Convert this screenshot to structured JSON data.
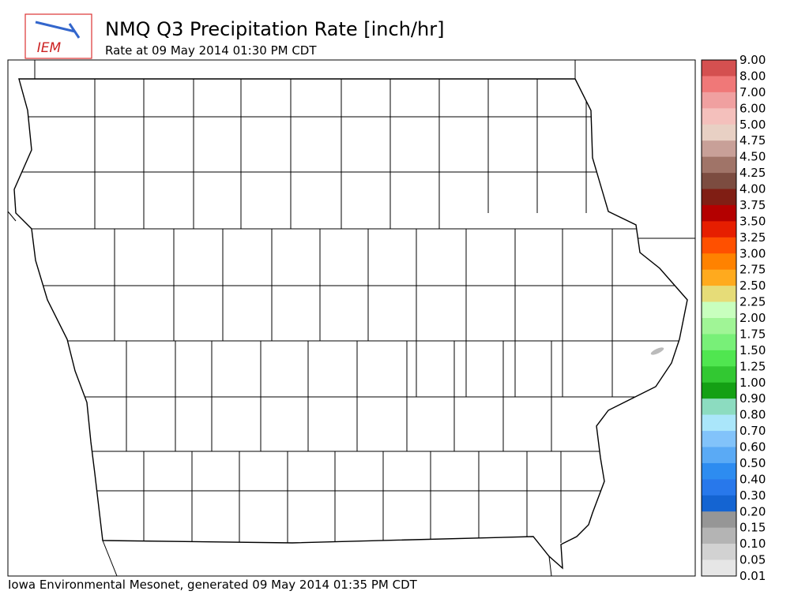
{
  "header": {
    "title": "NMQ Q3 Precipitation Rate [inch/hr]",
    "subtitle": "Rate at 09 May 2014 01:30 PM CDT",
    "logo": "IEM"
  },
  "legend": {
    "labels": [
      "9.00",
      "8.00",
      "7.00",
      "6.00",
      "5.00",
      "4.75",
      "4.50",
      "4.25",
      "4.00",
      "3.75",
      "3.50",
      "3.25",
      "3.00",
      "2.75",
      "2.50",
      "2.25",
      "2.00",
      "1.75",
      "1.50",
      "1.25",
      "1.00",
      "0.90",
      "0.80",
      "0.70",
      "0.60",
      "0.50",
      "0.40",
      "0.30",
      "0.20",
      "0.15",
      "0.10",
      "0.05",
      "0.01"
    ],
    "colors": [
      "#d45050",
      "#f07878",
      "#f0a0a0",
      "#f4c0bc",
      "#e8d0c4",
      "#c8a098",
      "#a07468",
      "#7c4c40",
      "#801e14",
      "#b40000",
      "#e61e00",
      "#ff5000",
      "#ff8200",
      "#ffaa1e",
      "#e6dc78",
      "#c8ffbe",
      "#a0f596",
      "#78f078",
      "#50e650",
      "#32c832",
      "#14a014",
      "#8cdcc0",
      "#aae6fa",
      "#82c3fa",
      "#5aaaf5",
      "#2d8cf0",
      "#2878eb",
      "#1464d2",
      "#969696",
      "#b4b4b4",
      "#d2d2d2",
      "#e6e6e6"
    ]
  },
  "footer": "Iowa Environmental Mesonet, generated 09 May 2014 01:35 PM CDT"
}
